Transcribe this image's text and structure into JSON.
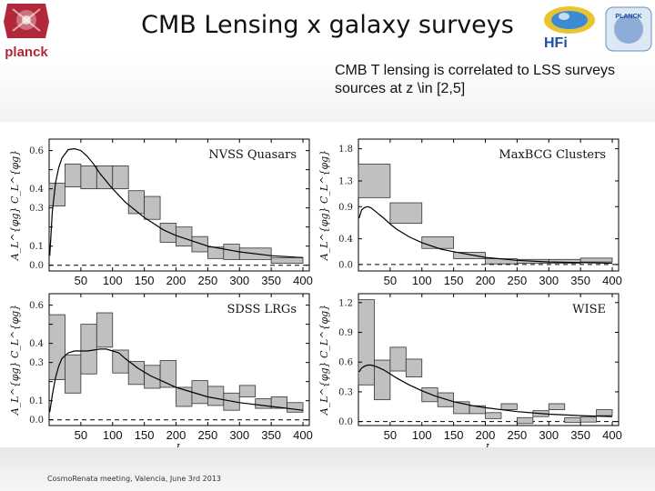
{
  "header": {
    "title": "CMB Lensing x galaxy surveys",
    "subtitle": "CMB T lensing is correlated to LSS surveys sources at z \\in [2,5]",
    "logo_text": "planck",
    "hfi_logo_text": "HFi",
    "lfi_logo_text": "PLANCK"
  },
  "footer": {
    "text": "CosmoRenata meeting, Valencia, June 3rd 2013"
  },
  "colors": {
    "box_fill": "#c0c0c0",
    "box_stroke": "#333333",
    "line": "#000000",
    "logo_red": "#b0283a"
  },
  "chart_data": [
    {
      "type": "bar",
      "title": "NVSS Quasars",
      "xlabel": "",
      "ylabel": "A_L^{φg} C_L^{φg}",
      "xlim": [
        0,
        410
      ],
      "ylim": [
        -0.03,
        0.66
      ],
      "yticks": [
        0.0,
        0.1,
        0.2,
        0.3,
        0.4,
        0.5,
        0.6
      ],
      "ytick_labels": [
        "0.0",
        "0.1",
        "",
        "0.3",
        "0.4",
        "",
        "0.6"
      ],
      "xticks": [
        50,
        100,
        150,
        200,
        250,
        300,
        350,
        400
      ],
      "bins": [
        {
          "lo": 0,
          "hi": 25,
          "center": 0.37,
          "err": 0.06
        },
        {
          "lo": 25,
          "hi": 50,
          "center": 0.47,
          "err": 0.06
        },
        {
          "lo": 50,
          "hi": 75,
          "center": 0.46,
          "err": 0.06
        },
        {
          "lo": 75,
          "hi": 100,
          "center": 0.46,
          "err": 0.06
        },
        {
          "lo": 100,
          "hi": 125,
          "center": 0.46,
          "err": 0.06
        },
        {
          "lo": 125,
          "hi": 150,
          "center": 0.33,
          "err": 0.06
        },
        {
          "lo": 150,
          "hi": 175,
          "center": 0.3,
          "err": 0.06
        },
        {
          "lo": 175,
          "hi": 200,
          "center": 0.17,
          "err": 0.05
        },
        {
          "lo": 200,
          "hi": 225,
          "center": 0.15,
          "err": 0.05
        },
        {
          "lo": 225,
          "hi": 250,
          "center": 0.11,
          "err": 0.04
        },
        {
          "lo": 250,
          "hi": 275,
          "center": 0.065,
          "err": 0.03
        },
        {
          "lo": 275,
          "hi": 300,
          "center": 0.07,
          "err": 0.04
        },
        {
          "lo": 300,
          "hi": 350,
          "center": 0.06,
          "err": 0.03
        },
        {
          "lo": 350,
          "hi": 400,
          "center": 0.025,
          "err": 0.015
        }
      ],
      "theory": {
        "x": [
          1,
          5,
          10,
          15,
          20,
          30,
          40,
          50,
          60,
          70,
          80,
          100,
          120,
          150,
          180,
          200,
          250,
          300,
          350,
          400
        ],
        "y": [
          0.05,
          0.28,
          0.43,
          0.51,
          0.56,
          0.605,
          0.61,
          0.6,
          0.57,
          0.53,
          0.48,
          0.4,
          0.33,
          0.25,
          0.185,
          0.155,
          0.1,
          0.07,
          0.05,
          0.04
        ]
      }
    },
    {
      "type": "bar",
      "title": "MaxBCG Clusters",
      "xlabel": "",
      "ylabel": "A_L^{φg} C_L^{φg}",
      "xlim": [
        0,
        410
      ],
      "ylim": [
        -0.1,
        1.95
      ],
      "yticks": [
        0.0,
        0.4,
        0.9,
        1.3,
        1.8
      ],
      "ytick_labels": [
        "0.0",
        "0.4",
        "0.9",
        "1.3",
        "1.8"
      ],
      "xticks": [
        50,
        100,
        150,
        200,
        250,
        300,
        350,
        400
      ],
      "bins": [
        {
          "lo": 0,
          "hi": 50,
          "center": 1.3,
          "err": 0.26
        },
        {
          "lo": 50,
          "hi": 100,
          "center": 0.8,
          "err": 0.16
        },
        {
          "lo": 100,
          "hi": 150,
          "center": 0.34,
          "err": 0.09
        },
        {
          "lo": 150,
          "hi": 200,
          "center": 0.14,
          "err": 0.05
        },
        {
          "lo": 200,
          "hi": 250,
          "center": 0.05,
          "err": 0.04
        },
        {
          "lo": 250,
          "hi": 300,
          "center": 0.05,
          "err": 0.03
        },
        {
          "lo": 300,
          "hi": 350,
          "center": 0.05,
          "err": 0.03
        },
        {
          "lo": 350,
          "hi": 400,
          "center": 0.07,
          "err": 0.03
        }
      ],
      "theory": {
        "x": [
          1,
          5,
          10,
          15,
          20,
          30,
          40,
          50,
          60,
          80,
          100,
          130,
          150,
          200,
          250,
          300,
          350,
          400
        ],
        "y": [
          0.72,
          0.85,
          0.89,
          0.9,
          0.88,
          0.8,
          0.72,
          0.63,
          0.55,
          0.43,
          0.34,
          0.24,
          0.2,
          0.11,
          0.065,
          0.04,
          0.03,
          0.02
        ]
      }
    },
    {
      "type": "bar",
      "title": "SDSS LRGs",
      "xlabel": "L",
      "ylabel": "A_L^{φg} C_L^{φg}",
      "xlim": [
        0,
        410
      ],
      "ylim": [
        -0.03,
        0.66
      ],
      "yticks": [
        0.0,
        0.1,
        0.2,
        0.3,
        0.4,
        0.5,
        0.6
      ],
      "ytick_labels": [
        "0.0",
        "0.1",
        "",
        "0.3",
        "0.4",
        "",
        "0.6"
      ],
      "xticks": [
        50,
        100,
        150,
        200,
        250,
        300,
        350,
        400
      ],
      "bins": [
        {
          "lo": 0,
          "hi": 25,
          "center": 0.38,
          "err": 0.17
        },
        {
          "lo": 25,
          "hi": 50,
          "center": 0.24,
          "err": 0.1
        },
        {
          "lo": 50,
          "hi": 75,
          "center": 0.37,
          "err": 0.13
        },
        {
          "lo": 75,
          "hi": 100,
          "center": 0.47,
          "err": 0.09
        },
        {
          "lo": 100,
          "hi": 125,
          "center": 0.305,
          "err": 0.06
        },
        {
          "lo": 125,
          "hi": 150,
          "center": 0.245,
          "err": 0.06
        },
        {
          "lo": 150,
          "hi": 175,
          "center": 0.225,
          "err": 0.06
        },
        {
          "lo": 175,
          "hi": 200,
          "center": 0.24,
          "err": 0.07
        },
        {
          "lo": 200,
          "hi": 225,
          "center": 0.12,
          "err": 0.05
        },
        {
          "lo": 225,
          "hi": 250,
          "center": 0.145,
          "err": 0.06
        },
        {
          "lo": 250,
          "hi": 275,
          "center": 0.125,
          "err": 0.05
        },
        {
          "lo": 275,
          "hi": 300,
          "center": 0.095,
          "err": 0.045
        },
        {
          "lo": 300,
          "hi": 325,
          "center": 0.15,
          "err": 0.03
        },
        {
          "lo": 325,
          "hi": 350,
          "center": 0.085,
          "err": 0.025
        },
        {
          "lo": 350,
          "hi": 375,
          "center": 0.09,
          "err": 0.03
        },
        {
          "lo": 375,
          "hi": 400,
          "center": 0.065,
          "err": 0.025
        }
      ],
      "theory": {
        "x": [
          1,
          5,
          10,
          15,
          20,
          25,
          30,
          40,
          50,
          60,
          70,
          80,
          90,
          100,
          110,
          120,
          140,
          160,
          180,
          200,
          250,
          300,
          350,
          400
        ],
        "y": [
          0.04,
          0.13,
          0.22,
          0.28,
          0.32,
          0.335,
          0.35,
          0.36,
          0.36,
          0.36,
          0.365,
          0.37,
          0.37,
          0.36,
          0.35,
          0.32,
          0.27,
          0.23,
          0.2,
          0.17,
          0.12,
          0.09,
          0.07,
          0.05
        ]
      }
    },
    {
      "type": "bar",
      "title": "WISE",
      "xlabel": "L",
      "ylabel": "A_L^{φg} C_L^{φg}",
      "xlim": [
        0,
        410
      ],
      "ylim": [
        -0.04,
        1.29
      ],
      "yticks": [
        0.0,
        0.3,
        0.6,
        0.9,
        1.2
      ],
      "ytick_labels": [
        "0.0",
        "0.3",
        "0.6",
        "0.9",
        "1.2"
      ],
      "xticks": [
        50,
        100,
        150,
        200,
        250,
        300,
        350,
        400
      ],
      "bins": [
        {
          "lo": 0,
          "hi": 25,
          "center": 0.8,
          "err": 0.43
        },
        {
          "lo": 25,
          "hi": 50,
          "center": 0.42,
          "err": 0.2
        },
        {
          "lo": 50,
          "hi": 75,
          "center": 0.63,
          "err": 0.12
        },
        {
          "lo": 75,
          "hi": 100,
          "center": 0.54,
          "err": 0.09
        },
        {
          "lo": 100,
          "hi": 125,
          "center": 0.27,
          "err": 0.07
        },
        {
          "lo": 125,
          "hi": 150,
          "center": 0.22,
          "err": 0.07
        },
        {
          "lo": 150,
          "hi": 175,
          "center": 0.14,
          "err": 0.06
        },
        {
          "lo": 175,
          "hi": 200,
          "center": 0.12,
          "err": 0.04
        },
        {
          "lo": 200,
          "hi": 225,
          "center": 0.06,
          "err": 0.03
        },
        {
          "lo": 225,
          "hi": 250,
          "center": 0.15,
          "err": 0.03
        },
        {
          "lo": 250,
          "hi": 275,
          "center": 0.01,
          "err": 0.03
        },
        {
          "lo": 275,
          "hi": 300,
          "center": 0.08,
          "err": 0.03
        },
        {
          "lo": 300,
          "hi": 325,
          "center": 0.15,
          "err": 0.03
        },
        {
          "lo": 325,
          "hi": 350,
          "center": 0.015,
          "err": 0.025
        },
        {
          "lo": 350,
          "hi": 375,
          "center": 0.02,
          "err": 0.025
        },
        {
          "lo": 375,
          "hi": 400,
          "center": 0.09,
          "err": 0.03
        }
      ],
      "theory": {
        "x": [
          1,
          5,
          10,
          15,
          20,
          30,
          40,
          50,
          60,
          80,
          100,
          120,
          150,
          180,
          200,
          250,
          300,
          350,
          400
        ],
        "y": [
          0.5,
          0.54,
          0.56,
          0.57,
          0.57,
          0.55,
          0.52,
          0.48,
          0.44,
          0.37,
          0.31,
          0.26,
          0.2,
          0.16,
          0.14,
          0.1,
          0.075,
          0.06,
          0.05
        ]
      }
    }
  ]
}
